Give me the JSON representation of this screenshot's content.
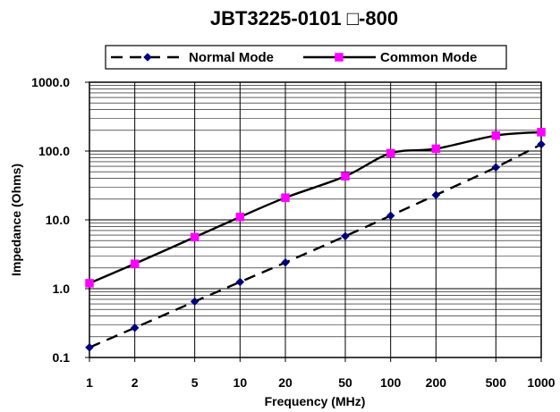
{
  "chart_data": {
    "type": "line",
    "title": "JBT3225-0101 □-800",
    "xlabel": "Frequency (MHz)",
    "ylabel": "Impedance (Ohms)",
    "x_scale": "log",
    "y_scale": "log",
    "xlim": [
      1,
      1000
    ],
    "ylim": [
      0.1,
      1000
    ],
    "grid": true,
    "legend_position": "top",
    "x_ticks": [
      {
        "value": 1,
        "label": "1"
      },
      {
        "value": 2,
        "label": "2"
      },
      {
        "value": 5,
        "label": "5"
      },
      {
        "value": 10,
        "label": "10"
      },
      {
        "value": 20,
        "label": "20"
      },
      {
        "value": 50,
        "label": "50"
      },
      {
        "value": 100,
        "label": "100"
      },
      {
        "value": 200,
        "label": "200"
      },
      {
        "value": 500,
        "label": "500"
      },
      {
        "value": 1000,
        "label": "1000"
      }
    ],
    "y_ticks": [
      {
        "value": 0.1,
        "label": "0.1"
      },
      {
        "value": 1,
        "label": "1.0"
      },
      {
        "value": 10,
        "label": "10.0"
      },
      {
        "value": 100,
        "label": "100.0"
      },
      {
        "value": 1000,
        "label": "1000.0"
      }
    ],
    "series": [
      {
        "name": "Normal Mode",
        "color": "#00007f",
        "line_color": "#000000",
        "line_style": "dashed",
        "marker": "diamond",
        "x": [
          1,
          2,
          5,
          10,
          20,
          50,
          100,
          200,
          500,
          1000
        ],
        "y": [
          0.14,
          0.27,
          0.65,
          1.25,
          2.4,
          5.8,
          11.5,
          23,
          58,
          125
        ]
      },
      {
        "name": "Common Mode",
        "color": "#ff00ff",
        "line_color": "#000000",
        "line_style": "solid",
        "marker": "square",
        "x": [
          1,
          2,
          5,
          10,
          20,
          50,
          100,
          200,
          500,
          1000
        ],
        "y": [
          1.2,
          2.3,
          5.6,
          11,
          21,
          43,
          93,
          108,
          168,
          188
        ]
      }
    ]
  }
}
